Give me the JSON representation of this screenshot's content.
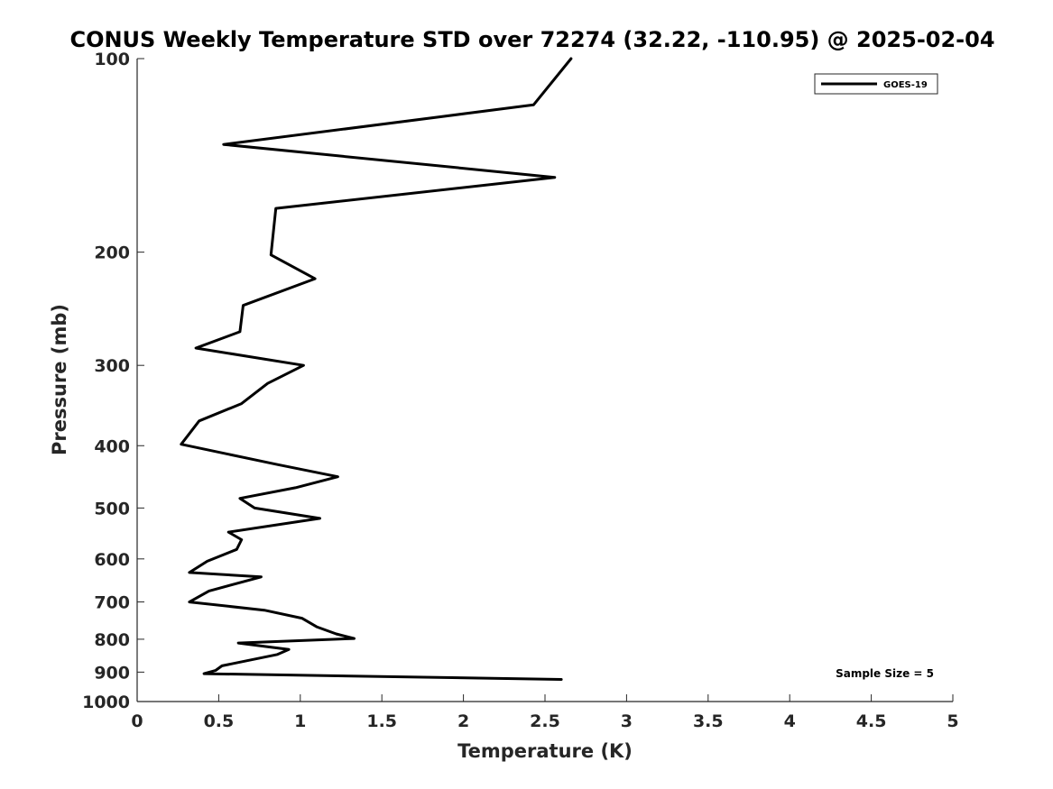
{
  "chart_data": {
    "type": "line",
    "title": "CONUS Weekly Temperature STD over 72274 (32.22, -110.95) @ 2025-02-04",
    "xlabel": "Temperature (K)",
    "ylabel": "Pressure (mb)",
    "xlim": [
      0,
      5
    ],
    "ylim": [
      100,
      1000
    ],
    "y_scale": "log",
    "y_reversed": true,
    "grid": false,
    "legend_position": "top-right",
    "x_ticks": [
      "0",
      "0.5",
      "1",
      "1.5",
      "2",
      "2.5",
      "3",
      "3.5",
      "4",
      "4.5",
      "5"
    ],
    "y_ticks": [
      "100",
      "200",
      "300",
      "400",
      "500",
      "600",
      "700",
      "800",
      "900",
      "1000"
    ],
    "annotation": "Sample Size = 5",
    "series": [
      {
        "name": "GOES-19",
        "color": "#000000",
        "points": [
          [
            2.66,
            100
          ],
          [
            2.43,
            118
          ],
          [
            0.53,
            136
          ],
          [
            2.56,
            153
          ],
          [
            0.85,
            171
          ],
          [
            0.82,
            202
          ],
          [
            1.09,
            220
          ],
          [
            0.65,
            242
          ],
          [
            0.63,
            266
          ],
          [
            0.36,
            282
          ],
          [
            1.02,
            300
          ],
          [
            0.8,
            320
          ],
          [
            0.64,
            344
          ],
          [
            0.38,
            366
          ],
          [
            0.27,
            398
          ],
          [
            0.86,
            428
          ],
          [
            1.23,
            447
          ],
          [
            0.97,
            465
          ],
          [
            0.63,
            483
          ],
          [
            0.72,
            500
          ],
          [
            1.12,
            519
          ],
          [
            0.56,
            545
          ],
          [
            0.64,
            560
          ],
          [
            0.61,
            580
          ],
          [
            0.43,
            605
          ],
          [
            0.32,
            630
          ],
          [
            0.76,
            640
          ],
          [
            0.44,
            673
          ],
          [
            0.32,
            700
          ],
          [
            0.78,
            721
          ],
          [
            1.01,
            742
          ],
          [
            1.1,
            765
          ],
          [
            1.22,
            785
          ],
          [
            1.33,
            798
          ],
          [
            0.62,
            811
          ],
          [
            0.93,
            830
          ],
          [
            0.86,
            845
          ],
          [
            0.52,
            880
          ],
          [
            0.48,
            895
          ],
          [
            0.41,
            905
          ],
          [
            2.6,
            924
          ]
        ]
      }
    ]
  }
}
